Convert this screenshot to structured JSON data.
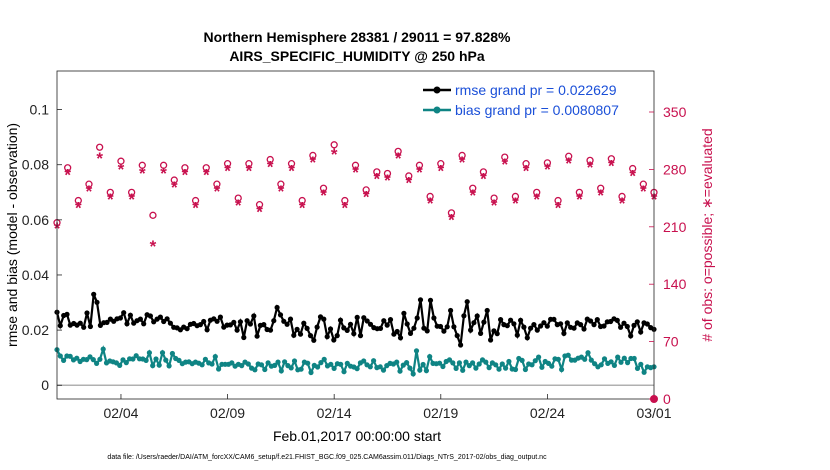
{
  "chart_data": {
    "type": "line",
    "title": "Northern Hemisphere 28381 / 29011 = 97.828%",
    "subtitle": "AIRS_SPECIFIC_HUMIDITY @ 250 hPa",
    "xlabel": "Feb.01,2017 00:00:00 start",
    "ylabel": "rmse and bias (model - observation)",
    "ylabel_right": "# of obs: o=possible; ∗=evaluated",
    "footer": "data file: /Users/raeder/DAI/ATM_forcXX/CAM6_setup/f.e21.FHIST_BGC.f09_025.CAM6assim.011/Diags_NTrS_2017-02/obs_diag_output.nc",
    "x_unit": "days since Feb.01,2017 00:00",
    "xlim": [
      0,
      28
    ],
    "ylim": [
      -0.005,
      0.114
    ],
    "ylim_right": [
      0,
      400
    ],
    "x_ticks": [
      {
        "x": 3,
        "label": "02/04"
      },
      {
        "x": 8,
        "label": "02/09"
      },
      {
        "x": 13,
        "label": "02/14"
      },
      {
        "x": 18,
        "label": "02/19"
      },
      {
        "x": 23,
        "label": "02/24"
      },
      {
        "x": 28,
        "label": "03/01"
      }
    ],
    "y_ticks": [
      {
        "v": 0,
        "label": "0"
      },
      {
        "v": 0.02,
        "label": "0.02"
      },
      {
        "v": 0.04,
        "label": "0.04"
      },
      {
        "v": 0.06,
        "label": "0.06"
      },
      {
        "v": 0.08,
        "label": "0.08"
      },
      {
        "v": 0.1,
        "label": "0.1"
      }
    ],
    "y_ticks_right": [
      {
        "v": 0,
        "label": "0"
      },
      {
        "v": 70,
        "label": "70"
      },
      {
        "v": 140,
        "label": "140"
      },
      {
        "v": 210,
        "label": "210"
      },
      {
        "v": 280,
        "label": "280"
      },
      {
        "v": 350,
        "label": "350"
      }
    ],
    "grid": false,
    "legend_placement": "top-right",
    "colors": {
      "rmse": "#000000",
      "bias": "#0f8484",
      "obs": "#c8104e",
      "zero_line": "#b0b0b0"
    },
    "series": [
      {
        "name": "rmse grand pr = 0.022629",
        "axis": "left",
        "values": [
          0.0265,
          0.0216,
          0.0253,
          0.0257,
          0.0218,
          0.0224,
          0.0218,
          0.0225,
          0.021,
          0.0262,
          0.0213,
          0.033,
          0.0301,
          0.0217,
          0.0227,
          0.0228,
          0.024,
          0.0232,
          0.0241,
          0.0244,
          0.0263,
          0.0223,
          0.0254,
          0.0225,
          0.0234,
          0.024,
          0.0223,
          0.0256,
          0.0251,
          0.023,
          0.024,
          0.0247,
          0.0231,
          0.0241,
          0.0225,
          0.021,
          0.0208,
          0.0201,
          0.0211,
          0.0205,
          0.0221,
          0.0224,
          0.0216,
          0.022,
          0.0231,
          0.0201,
          0.0236,
          0.0241,
          0.0232,
          0.0247,
          0.0211,
          0.0218,
          0.0219,
          0.0228,
          0.02,
          0.023,
          0.0173,
          0.0234,
          0.0222,
          0.0251,
          0.0178,
          0.0217,
          0.022,
          0.0202,
          0.02,
          0.0234,
          0.0282,
          0.0255,
          0.0232,
          0.0221,
          0.024,
          0.0181,
          0.0203,
          0.0185,
          0.0225,
          0.0206,
          0.018,
          0.0163,
          0.0211,
          0.0248,
          0.024,
          0.0176,
          0.0204,
          0.0164,
          0.018,
          0.0236,
          0.0208,
          0.0199,
          0.0221,
          0.0187,
          0.0246,
          0.018,
          0.0245,
          0.0233,
          0.0221,
          0.0209,
          0.0205,
          0.0206,
          0.0234,
          0.0218,
          0.0238,
          0.0185,
          0.0195,
          0.0172,
          0.0261,
          0.0222,
          0.0188,
          0.0207,
          0.0244,
          0.031,
          0.0207,
          0.0197,
          0.0308,
          0.0244,
          0.0214,
          0.0213,
          0.0196,
          0.0212,
          0.0271,
          0.0212,
          0.018,
          0.0146,
          0.0252,
          0.0303,
          0.02,
          0.0227,
          0.0251,
          0.0188,
          0.0229,
          0.0271,
          0.0164,
          0.0197,
          0.0187,
          0.0238,
          0.022,
          0.0216,
          0.0236,
          0.0223,
          0.0182,
          0.0235,
          0.0211,
          0.0172,
          0.0207,
          0.022,
          0.02,
          0.0215,
          0.0227,
          0.0214,
          0.0239,
          0.0239,
          0.022,
          0.0223,
          0.0188,
          0.0226,
          0.021,
          0.0207,
          0.0226,
          0.022,
          0.0204,
          0.024,
          0.0233,
          0.022,
          0.0238,
          0.0213,
          0.0215,
          0.023,
          0.0231,
          0.0241,
          0.0235,
          0.021,
          0.0225,
          0.0213,
          0.0179,
          0.0217,
          0.023,
          0.0193,
          0.0226,
          0.0222,
          0.0209,
          0.0203
        ]
      },
      {
        "name": "bias grand pr = 0.0080807",
        "axis": "left",
        "values": [
          0.0129,
          0.0106,
          0.009,
          0.0106,
          0.0105,
          0.0092,
          0.0098,
          0.0086,
          0.0094,
          0.0093,
          0.0103,
          0.0093,
          0.0079,
          0.0094,
          0.0131,
          0.0081,
          0.0088,
          0.0085,
          0.0081,
          0.0072,
          0.0092,
          0.0082,
          0.0096,
          0.0095,
          0.0107,
          0.0096,
          0.0095,
          0.009,
          0.0118,
          0.0071,
          0.0095,
          0.0073,
          0.0118,
          0.0091,
          0.007,
          0.0115,
          0.0097,
          0.009,
          0.0078,
          0.0084,
          0.0085,
          0.0078,
          0.0084,
          0.008,
          0.0074,
          0.0094,
          0.0081,
          0.0077,
          0.0104,
          0.0059,
          0.0076,
          0.0076,
          0.0076,
          0.0081,
          0.0069,
          0.0076,
          0.0071,
          0.0084,
          0.0077,
          0.0062,
          0.0056,
          0.0077,
          0.0074,
          0.0057,
          0.0081,
          0.0069,
          0.0072,
          0.0084,
          0.0052,
          0.0085,
          0.0071,
          0.0063,
          0.0088,
          0.0056,
          0.0058,
          0.0084,
          0.008,
          0.0046,
          0.0072,
          0.0066,
          0.0082,
          0.0094,
          0.007,
          0.0076,
          0.0061,
          0.0078,
          0.0076,
          0.0049,
          0.0079,
          0.0069,
          0.0066,
          0.006,
          0.0081,
          0.0088,
          0.0074,
          0.0067,
          0.0089,
          0.0064,
          0.0067,
          0.0055,
          0.0071,
          0.0079,
          0.0077,
          0.0084,
          0.0051,
          0.0073,
          0.0082,
          0.0062,
          0.0041,
          0.0125,
          0.0055,
          0.0075,
          0.0053,
          0.0104,
          0.0079,
          0.0078,
          0.008,
          0.0068,
          0.0086,
          0.0092,
          0.0081,
          0.0061,
          0.0081,
          0.0054,
          0.0084,
          0.0071,
          0.0081,
          0.0062,
          0.0077,
          0.0092,
          0.0084,
          0.0064,
          0.0081,
          0.0074,
          0.0058,
          0.0077,
          0.0062,
          0.0086,
          0.0059,
          0.0057,
          0.0097,
          0.009,
          0.0057,
          0.0077,
          0.0074,
          0.0089,
          0.0102,
          0.0065,
          0.0086,
          0.0079,
          0.0069,
          0.0096,
          0.0094,
          0.0057,
          0.0106,
          0.0109,
          0.0091,
          0.0091,
          0.0098,
          0.0102,
          0.0094,
          0.0118,
          0.0091,
          0.0078,
          0.0067,
          0.0074,
          0.0096,
          0.0079,
          0.0085,
          0.0072,
          0.0102,
          0.0083,
          0.0098,
          0.0082,
          0.0097,
          0.0097,
          0.0061,
          0.0076,
          0.0047,
          0.0067,
          0.0064,
          0.0067
        ]
      },
      {
        "name": "# of obs possible",
        "axis": "right",
        "marker": "o",
        "x": [
          0,
          0.5,
          1,
          1.5,
          2,
          2.5,
          3,
          3.5,
          4,
          4.5,
          5,
          5.5,
          6,
          6.5,
          7,
          7.5,
          8,
          8.5,
          9,
          9.5,
          10,
          10.5,
          11,
          11.5,
          12,
          12.5,
          13,
          13.5,
          14,
          14.5,
          15,
          15.5,
          16,
          16.5,
          17,
          17.5,
          18,
          18.5,
          19,
          19.5,
          20,
          20.5,
          21,
          21.5,
          22,
          22.5,
          23,
          23.5,
          24,
          24.5,
          25,
          25.5,
          26,
          26.5,
          27,
          27.5,
          28
        ],
        "values": [
          215,
          282,
          242,
          262,
          307,
          252,
          290,
          252,
          285,
          224,
          285,
          267,
          282,
          242,
          282,
          262,
          287,
          245,
          287,
          237,
          292,
          262,
          287,
          242,
          297,
          257,
          310,
          242,
          285,
          255,
          277,
          275,
          302,
          272,
          285,
          247,
          287,
          227,
          297,
          257,
          277,
          245,
          295,
          247,
          287,
          252,
          288,
          242,
          296,
          252,
          291,
          257,
          293,
          247,
          281,
          262,
          252
        ]
      },
      {
        "name": "# of obs evaluated",
        "axis": "right",
        "marker": "*",
        "x": [
          0,
          0.5,
          1,
          1.5,
          2,
          2.5,
          3,
          3.5,
          4,
          4.5,
          5,
          5.5,
          6,
          6.5,
          7,
          7.5,
          8,
          8.5,
          9,
          9.5,
          10,
          10.5,
          11,
          11.5,
          12,
          12.5,
          13,
          13.5,
          14,
          14.5,
          15,
          15.5,
          16,
          16.5,
          17,
          17.5,
          18,
          18.5,
          19,
          19.5,
          20,
          20.5,
          21,
          21.5,
          22,
          22.5,
          23,
          23.5,
          24,
          24.5,
          25,
          25.5,
          26,
          26.5,
          27,
          27.5,
          28
        ],
        "values": [
          210,
          275,
          235,
          255,
          295,
          245,
          282,
          245,
          277,
          188,
          277,
          260,
          275,
          235,
          275,
          255,
          280,
          238,
          280,
          230,
          285,
          255,
          280,
          235,
          290,
          250,
          300,
          235,
          278,
          248,
          270,
          268,
          295,
          265,
          278,
          240,
          280,
          220,
          290,
          250,
          270,
          238,
          288,
          240,
          280,
          245,
          282,
          235,
          289,
          245,
          284,
          250,
          286,
          240,
          274,
          255,
          245
        ]
      }
    ]
  }
}
